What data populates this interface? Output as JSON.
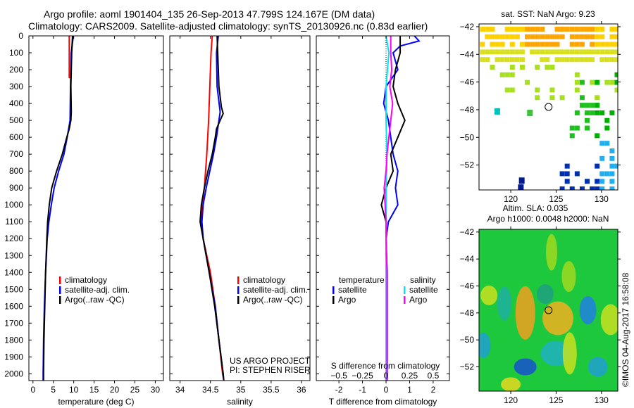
{
  "header": {
    "line1": "Argo profile: aoml 1901404_135 26-Sep-2013 47.799S 124.167E (DM data)",
    "line2": "Climatology: CARS2009. Satellite-adjusted climatology: synTS_20130926.nc (0.83d earlier)"
  },
  "colors": {
    "climatology": "#ff0000",
    "satellite": "#0000ff",
    "argo": "#000000",
    "sal_satellite": "#00e5ee",
    "sal_argo": "#ff00ff"
  },
  "chart_data": [
    {
      "type": "line",
      "id": "temperature",
      "xlabel": "temperature (deg C)",
      "xlim": [
        -1,
        32
      ],
      "ylim": [
        0,
        2040
      ],
      "xticks": [
        0,
        5,
        10,
        15,
        20,
        25,
        30
      ],
      "yticks": [
        0,
        100,
        200,
        300,
        400,
        500,
        600,
        700,
        800,
        900,
        1000,
        1100,
        1200,
        1300,
        1400,
        1500,
        1600,
        1700,
        1800,
        1900,
        2000
      ],
      "legend": [
        "climatology",
        "satellite-adj. clim.",
        "Argo(..raw -QC)"
      ],
      "legend_position": "center",
      "series": [
        {
          "name": "climatology",
          "depth": [
            0,
            50,
            100,
            200,
            250
          ],
          "values": [
            8.9,
            8.9,
            8.9,
            8.9,
            8.9
          ]
        },
        {
          "name": "satellite-adj. clim.",
          "depth": [
            0,
            100,
            300,
            500,
            600,
            700,
            800,
            900,
            1000,
            1100,
            1200,
            1400,
            1600,
            1800,
            2000,
            2040
          ],
          "values": [
            9.9,
            9.4,
            9.2,
            9.1,
            8.4,
            7.6,
            6.3,
            5.2,
            4.5,
            3.9,
            3.5,
            3.1,
            2.8,
            2.6,
            2.5,
            2.5
          ]
        },
        {
          "name": "Argo(..raw -QC)",
          "depth": [
            0,
            100,
            300,
            450,
            500,
            550,
            600,
            700,
            800,
            900,
            1000,
            1050,
            1100,
            1200,
            1400,
            1600,
            1800,
            2000,
            2040
          ],
          "values": [
            9.7,
            9.5,
            9.3,
            9.4,
            9.3,
            8.9,
            8.3,
            7.2,
            5.8,
            4.6,
            4.0,
            3.8,
            3.6,
            3.4,
            3.1,
            2.9,
            2.7,
            2.6,
            2.6
          ]
        }
      ]
    },
    {
      "type": "line",
      "id": "salinity",
      "xlabel": "salinity",
      "xlim": [
        33.83,
        36.14
      ],
      "ylim": [
        0,
        2040
      ],
      "xticks": [
        34,
        34.5,
        35,
        35.5,
        36
      ],
      "legend": [
        "climatology",
        "satellite-adj. clim.",
        "Argo(..raw -QC)"
      ],
      "legend_position": "center",
      "annotation": [
        "US ARGO PROJECT",
        "PI: STEPHEN RISER"
      ],
      "series": [
        {
          "name": "climatology",
          "depth": [
            0,
            100,
            300,
            500,
            700,
            900,
            1000,
            1100,
            1200,
            1400,
            1600,
            1800,
            2000,
            2040
          ],
          "values": [
            34.53,
            34.51,
            34.49,
            34.47,
            34.44,
            34.4,
            34.36,
            34.35,
            34.38,
            34.5,
            34.58,
            34.64,
            34.7,
            34.72
          ]
        },
        {
          "name": "satellite-adj. clim.",
          "depth": [
            0,
            100,
            300,
            450,
            500,
            600,
            700,
            800,
            900,
            1000,
            1100,
            1200,
            1400,
            1600,
            1800,
            2000,
            2040
          ],
          "values": [
            34.63,
            34.6,
            34.61,
            34.66,
            34.64,
            34.6,
            34.55,
            34.49,
            34.43,
            34.38,
            34.36,
            34.38,
            34.48,
            34.58,
            34.64,
            34.71,
            34.72
          ]
        },
        {
          "name": "Argo(..raw -QC)",
          "depth": [
            0,
            100,
            300,
            420,
            460,
            500,
            550,
            600,
            700,
            800,
            900,
            1000,
            1100,
            1200,
            1400,
            1600,
            1800,
            2000,
            2040
          ],
          "values": [
            34.61,
            34.62,
            34.64,
            34.68,
            34.71,
            34.66,
            34.6,
            34.58,
            34.53,
            34.46,
            34.4,
            34.35,
            34.33,
            34.38,
            34.48,
            34.57,
            34.64,
            34.71,
            34.72
          ]
        }
      ]
    },
    {
      "type": "line",
      "id": "difference",
      "xlabel": "T difference from climatology",
      "xlabel_top": "S difference from climatology",
      "xlim": [
        -2.96,
        2.69
      ],
      "ylim": [
        0,
        2040
      ],
      "xticks": [
        -2,
        -1,
        0,
        1,
        2
      ],
      "xticks_top": [
        -0.5,
        -0.25,
        0,
        0.25,
        0.5
      ],
      "legend_titles": [
        "temperature",
        "salinity"
      ],
      "legend": [
        "satellite",
        "Argo",
        "satellite",
        "Argo"
      ],
      "series": [
        {
          "name": "temperature satellite",
          "depth": [
            0,
            30,
            60,
            100,
            200,
            300,
            400,
            500,
            600,
            700,
            800,
            900,
            1000,
            1100,
            1200,
            1400,
            1600,
            1800,
            2000,
            2040
          ],
          "values": [
            1.2,
            1.4,
            0.6,
            0.3,
            0.5,
            0.0,
            -0.1,
            0.1,
            0.2,
            0.3,
            0.5,
            0.4,
            0.5,
            0.1,
            0.0,
            0.05,
            0.05,
            0.05,
            0.05,
            0.05
          ]
        },
        {
          "name": "temperature Argo",
          "depth": [
            0,
            100,
            200,
            300,
            400,
            500,
            600,
            700,
            800,
            900,
            1000,
            1050,
            1100,
            1200,
            1400,
            1600,
            1800,
            2000,
            2040
          ],
          "values": [
            0.6,
            0.6,
            0.4,
            0.3,
            0.5,
            0.8,
            0.5,
            0.2,
            0.3,
            0.0,
            -0.2,
            -0.1,
            0.0,
            0.0,
            0.0,
            0.02,
            0.02,
            0.02,
            0.02
          ]
        },
        {
          "name": "salinity satellite",
          "depth": [
            0,
            100,
            300,
            500,
            700,
            900,
            1100,
            1300,
            1600,
            2040
          ],
          "values": [
            0.0,
            0.03,
            0.0,
            0.0,
            0.01,
            0.0,
            0.0,
            0.0,
            0.0,
            0.0
          ]
        },
        {
          "name": "salinity Argo",
          "depth": [
            0,
            100,
            200,
            300,
            400,
            500,
            600,
            700,
            800,
            900,
            1000,
            1100,
            1200,
            1400,
            1600,
            1800,
            2000,
            2040
          ],
          "values": [
            0.05,
            0.05,
            0.06,
            0.04,
            0.07,
            0.05,
            0.03,
            0.01,
            0.0,
            -0.02,
            -0.01,
            0.0,
            0.0,
            0.01,
            0.01,
            0.01,
            0.01,
            0.01
          ]
        }
      ]
    },
    {
      "type": "heatmap",
      "id": "sst_map",
      "title": "sat. SST: NaN Argo: 9.23",
      "xlim": [
        116.5,
        131.8
      ],
      "ylim": [
        -53.8,
        -41.8
      ],
      "xticks": [
        120,
        125,
        130
      ],
      "yticks": [
        -42,
        -44,
        -46,
        -48,
        -50,
        -52
      ],
      "marker": {
        "lon": 124.167,
        "lat": -47.799
      }
    },
    {
      "type": "heatmap",
      "id": "sla_map",
      "title": "Altim. SLA: 0.035",
      "subtitle": "Argo h1000: 0.0048 h2000: NaN",
      "xlim": [
        116.5,
        131.8
      ],
      "ylim": [
        -53.8,
        -41.8
      ],
      "xticks": [
        120,
        125,
        130
      ],
      "yticks": [
        -42,
        -44,
        -46,
        -48,
        -50,
        -52
      ],
      "marker": {
        "lon": 124.167,
        "lat": -47.799
      },
      "footer": "©IMOS 04-Aug-2017 16:58:08"
    }
  ]
}
